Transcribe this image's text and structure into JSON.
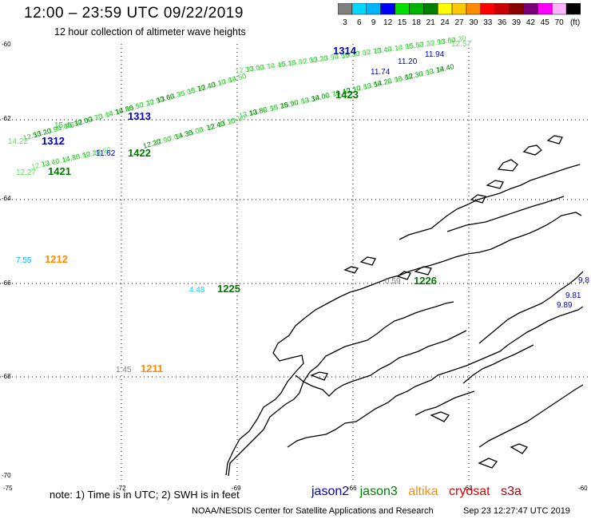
{
  "header": {
    "title": "12:00 – 23:59 UTC 09/22/2019",
    "subtitle": "12 hour collection of altimeter wave heights"
  },
  "colorbar": {
    "colors": [
      "#808080",
      "#00d8ff",
      "#00b4ff",
      "#0000ff",
      "#00e000",
      "#00b400",
      "#008000",
      "#ffff00",
      "#ffc800",
      "#ff8c00",
      "#ff0000",
      "#c80000",
      "#8c0000",
      "#780078",
      "#ff00ff",
      "#ffb4ff",
      "#000000"
    ],
    "labels": [
      "3",
      "6",
      "9",
      "12",
      "15",
      "18",
      "21",
      "24",
      "27",
      "30",
      "33",
      "36",
      "39",
      "42",
      "45",
      "70",
      "(ft)"
    ]
  },
  "axes": {
    "lat_labels": [
      "-60",
      "-62",
      "-64",
      "-66",
      "-68",
      "-70"
    ],
    "lon_labels": [
      "-75",
      "-72",
      "-69",
      "-66",
      "-63",
      "-60"
    ]
  },
  "passes": [
    {
      "id": "1314",
      "color": "#0000c8"
    },
    {
      "id": "1423",
      "color": "#007800"
    },
    {
      "id": "1313",
      "color": "#0000c8"
    },
    {
      "id": "1312",
      "color": "#0000c8"
    },
    {
      "id": "1422",
      "color": "#007800"
    },
    {
      "id": "1421",
      "color": "#007800"
    },
    {
      "id": "1212",
      "color": "#ff8c00"
    },
    {
      "id": "1225",
      "color": "#007800"
    },
    {
      "id": "1226",
      "color": "#007800"
    },
    {
      "id": "1211",
      "color": "#ff8c00"
    }
  ],
  "swh_values": [
    {
      "text": "12.57",
      "color": "#60e060"
    },
    {
      "text": "11.94",
      "color": "#0000c8"
    },
    {
      "text": "11.20",
      "color": "#0000c8"
    },
    {
      "text": "11.74",
      "color": "#0000c8"
    },
    {
      "text": "11.62",
      "color": "#0000c8"
    },
    {
      "text": "14.22",
      "color": "#60e060"
    },
    {
      "text": "15.46",
      "color": "#30c030"
    },
    {
      "text": "12.27",
      "color": "#60e060"
    },
    {
      "text": "7.55",
      "color": "#00b4ff"
    },
    {
      "text": "4.48",
      "color": "#00d8ff"
    },
    {
      "text": "0.59",
      "color": "#808080"
    },
    {
      "text": "1.45",
      "color": "#808080"
    },
    {
      "text": "9.8",
      "color": "#0000c8"
    },
    {
      "text": "9.81",
      "color": "#0000c8"
    },
    {
      "text": "9.89",
      "color": "#0000c8"
    }
  ],
  "footer": {
    "note": "note:  1) Time is in UTC; 2) SWH is in feet",
    "satellites": [
      {
        "name": "jason2",
        "color": "#0000c8"
      },
      {
        "name": "jason3",
        "color": "#008000"
      },
      {
        "name": "altika",
        "color": "#ff8c00"
      },
      {
        "name": "cryosat",
        "color": "#e00000"
      },
      {
        "name": "s3a",
        "color": "#b00000"
      }
    ],
    "credit": "NOAA/NESDIS Center for Satellite Applications and Research",
    "timestamp": "Sep 23 12:27:47 UTC 2019"
  }
}
